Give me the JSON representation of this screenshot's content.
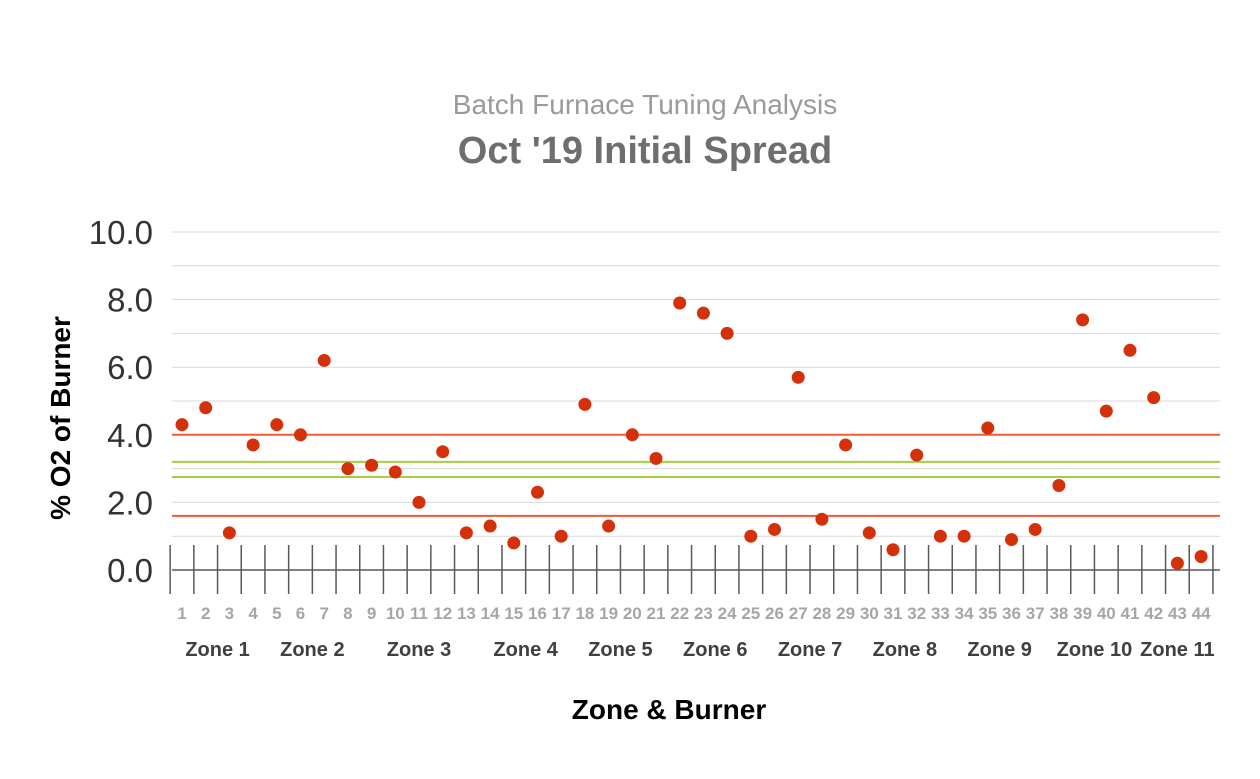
{
  "chart_data": {
    "type": "scatter",
    "subtitle": "Batch Furnace Tuning Analysis",
    "title": "Oct '19 Initial Spread",
    "xlabel": "Zone & Burner",
    "ylabel": "% O2 of Burner",
    "ylim": [
      0,
      10
    ],
    "yticks": [
      "0.0",
      "2.0",
      "4.0",
      "6.0",
      "8.0",
      "10.0"
    ],
    "grid": true,
    "categories": [
      "1",
      "2",
      "3",
      "4",
      "5",
      "6",
      "7",
      "8",
      "9",
      "10",
      "11",
      "12",
      "13",
      "14",
      "15",
      "16",
      "17",
      "18",
      "19",
      "20",
      "21",
      "22",
      "23",
      "24",
      "25",
      "26",
      "27",
      "28",
      "29",
      "30",
      "31",
      "32",
      "33",
      "34",
      "35",
      "36",
      "37",
      "38",
      "39",
      "40",
      "41",
      "42",
      "43",
      "44"
    ],
    "series": [
      {
        "color": "#d4310b",
        "values": [
          4.3,
          4.8,
          1.1,
          3.7,
          4.3,
          4.0,
          6.2,
          3.0,
          3.1,
          2.9,
          2.0,
          3.5,
          1.1,
          1.3,
          0.8,
          2.3,
          1.0,
          4.9,
          1.3,
          4.0,
          3.3,
          7.9,
          7.6,
          7.0,
          1.0,
          1.2,
          5.7,
          1.5,
          3.7,
          1.1,
          0.6,
          3.4,
          1.0,
          1.0,
          4.2,
          0.9,
          1.2,
          2.5,
          7.4,
          4.7,
          6.5,
          5.1,
          0.2,
          0.4
        ]
      }
    ],
    "reference_lines": [
      {
        "value": 4.0,
        "color": "#f25a35"
      },
      {
        "value": 1.6,
        "color": "#f25a35"
      },
      {
        "value": 3.2,
        "color": "#a6ce39"
      },
      {
        "value": 2.75,
        "color": "#a6ce39"
      }
    ],
    "zones": [
      {
        "label": "Zone 1",
        "start": 1,
        "end": 4
      },
      {
        "label": "Zone 2",
        "start": 5,
        "end": 8
      },
      {
        "label": "Zone 3",
        "start": 9,
        "end": 13
      },
      {
        "label": "Zone 4",
        "start": 14,
        "end": 17
      },
      {
        "label": "Zone 5",
        "start": 18,
        "end": 21
      },
      {
        "label": "Zone 6",
        "start": 22,
        "end": 25
      },
      {
        "label": "Zone 7",
        "start": 26,
        "end": 29
      },
      {
        "label": "Zone 8",
        "start": 30,
        "end": 33
      },
      {
        "label": "Zone 9",
        "start": 34,
        "end": 37
      },
      {
        "label": "Zone 10",
        "start": 38,
        "end": 41
      },
      {
        "label": "Zone 11",
        "start": 42,
        "end": 44
      }
    ]
  }
}
